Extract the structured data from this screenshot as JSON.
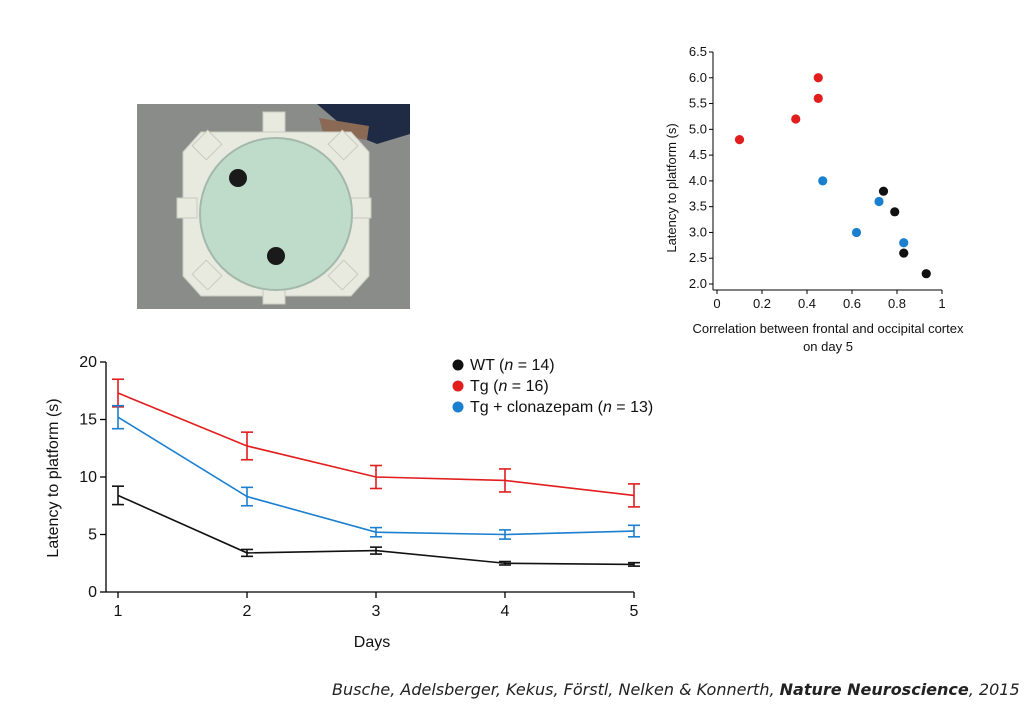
{
  "colors": {
    "WT": "#111111",
    "Tg": "#e11d1d",
    "Tg_clonazepam": "#1b7fd0"
  },
  "photo": {
    "description_icon": "water-maze-photo-icon"
  },
  "citation": {
    "authors": "Busche, Adelsberger, Kekus, Förstl, Nelken & Konnerth, ",
    "journal": "Nature Neuroscience",
    "year": ", 2015"
  },
  "chart_data": [
    {
      "type": "scatter",
      "xlabel_line1": "Correlation between frontal and occipital cortex",
      "xlabel_line2": "on day 5",
      "ylabel": "Latency to platform (s)",
      "xlim": [
        0,
        1
      ],
      "ylim": [
        2.0,
        6.5
      ],
      "xticks": [
        "0",
        "0.2",
        "0.4",
        "0.6",
        "0.8",
        "1"
      ],
      "xtick_values": [
        0,
        0.2,
        0.4,
        0.6,
        0.8,
        1
      ],
      "yticks": [
        "2.0",
        "2.5",
        "3.0",
        "3.5",
        "4.0",
        "4.5",
        "5.0",
        "5.5",
        "6.0",
        "6.5"
      ],
      "ytick_values": [
        2.0,
        2.5,
        3.0,
        3.5,
        4.0,
        4.5,
        5.0,
        5.5,
        6.0,
        6.5
      ],
      "series": [
        {
          "group": "Tg",
          "points": [
            [
              0.1,
              4.8
            ],
            [
              0.35,
              5.2
            ],
            [
              0.45,
              6.0
            ],
            [
              0.45,
              5.6
            ]
          ]
        },
        {
          "group": "Tg_clonazepam",
          "points": [
            [
              0.47,
              4.0
            ],
            [
              0.62,
              3.0
            ],
            [
              0.72,
              3.6
            ],
            [
              0.83,
              2.8
            ]
          ]
        },
        {
          "group": "WT",
          "points": [
            [
              0.74,
              3.8
            ],
            [
              0.79,
              3.4
            ],
            [
              0.83,
              2.6
            ],
            [
              0.93,
              2.2
            ]
          ]
        }
      ]
    },
    {
      "type": "line",
      "xlabel": "Days",
      "ylabel": "Latency to platform (s)",
      "x": [
        1,
        2,
        3,
        4,
        5
      ],
      "xticks": [
        "1",
        "2",
        "3",
        "4",
        "5"
      ],
      "ylim": [
        0,
        20
      ],
      "yticks": [
        "0",
        "5",
        "10",
        "15",
        "20"
      ],
      "ytick_values": [
        0,
        5,
        10,
        15,
        20
      ],
      "legend_position": "top-right",
      "series": [
        {
          "group": "WT",
          "legend_prefix": "WT (",
          "legend_n": "n",
          "legend_suffix": " = 14)",
          "values": [
            8.4,
            3.4,
            3.6,
            2.5,
            2.4
          ],
          "errors": [
            0.8,
            0.3,
            0.3,
            0.15,
            0.15
          ]
        },
        {
          "group": "Tg",
          "legend_prefix": "Tg (",
          "legend_n": "n",
          "legend_suffix": " = 16)",
          "values": [
            17.3,
            12.7,
            10.0,
            9.7,
            8.4
          ],
          "errors": [
            1.2,
            1.2,
            1.0,
            1.0,
            1.0
          ]
        },
        {
          "group": "Tg_clonazepam",
          "legend_prefix": "Tg + clonazepam (",
          "legend_n": "n",
          "legend_suffix": " = 13)",
          "values": [
            15.2,
            8.3,
            5.2,
            5.0,
            5.3
          ],
          "errors": [
            1.0,
            0.8,
            0.4,
            0.4,
            0.5
          ]
        }
      ]
    }
  ]
}
